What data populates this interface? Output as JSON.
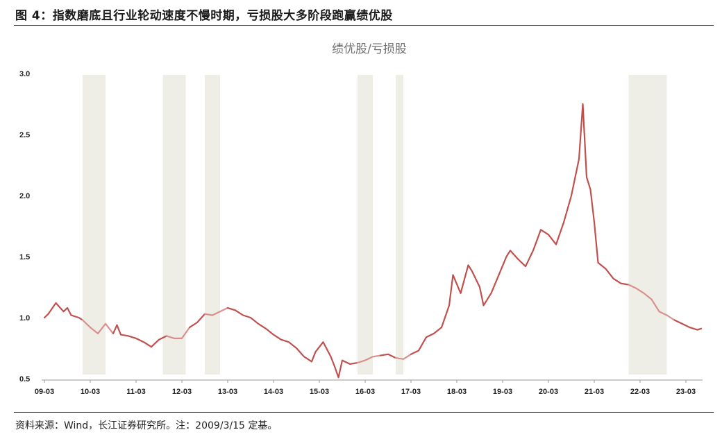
{
  "figure_title": "图 4：指数磨底且行业轮动速度不慢时期，亏损股大多阶段跑赢绩优股",
  "source_note": "资料来源：Wind，长江证券研究所。注：2009/3/15 定基。",
  "colors": {
    "line": "#c0504d",
    "line_in_band": "#d9908d",
    "band": "#eeede6",
    "axis": "#999999"
  },
  "chart_data": {
    "type": "line",
    "title": "绩优股/亏损股",
    "xlabel": "",
    "ylabel": "",
    "ylim": [
      0.5,
      3.0
    ],
    "yticks": [
      "0.5",
      "1.0",
      "1.5",
      "2.0",
      "2.5",
      "3.0"
    ],
    "x_tick_labels": [
      "09-03",
      "10-03",
      "11-03",
      "12-03",
      "13-03",
      "14-03",
      "15-03",
      "16-03",
      "17-03",
      "18-03",
      "19-03",
      "20-03",
      "21-03",
      "22-03",
      "23-03"
    ],
    "x_start": "2009-03",
    "x_end": "2023-07",
    "grid": false,
    "legend": "none",
    "shaded_periods": [
      {
        "start": "2010-01",
        "end": "2010-07"
      },
      {
        "start": "2011-10",
        "end": "2012-04"
      },
      {
        "start": "2012-09",
        "end": "2013-01"
      },
      {
        "start": "2016-01",
        "end": "2016-05"
      },
      {
        "start": "2016-11",
        "end": "2017-01"
      },
      {
        "start": "2021-12",
        "end": "2022-10"
      }
    ],
    "series": [
      {
        "name": "绩优股/亏损股",
        "x": [
          "2009-03",
          "2009-04",
          "2009-06",
          "2009-08",
          "2009-09",
          "2009-10",
          "2009-12",
          "2010-01",
          "2010-03",
          "2010-05",
          "2010-07",
          "2010-09",
          "2010-10",
          "2010-11",
          "2011-01",
          "2011-03",
          "2011-05",
          "2011-07",
          "2011-09",
          "2011-11",
          "2012-01",
          "2012-03",
          "2012-05",
          "2012-07",
          "2012-09",
          "2012-11",
          "2013-01",
          "2013-03",
          "2013-05",
          "2013-07",
          "2013-09",
          "2013-11",
          "2014-01",
          "2014-03",
          "2014-05",
          "2014-07",
          "2014-09",
          "2014-11",
          "2015-01",
          "2015-02",
          "2015-04",
          "2015-06",
          "2015-07",
          "2015-08",
          "2015-09",
          "2015-11",
          "2016-01",
          "2016-03",
          "2016-05",
          "2016-07",
          "2016-09",
          "2016-11",
          "2017-01",
          "2017-03",
          "2017-05",
          "2017-07",
          "2017-09",
          "2017-11",
          "2018-01",
          "2018-02",
          "2018-04",
          "2018-06",
          "2018-07",
          "2018-09",
          "2018-10",
          "2018-12",
          "2019-02",
          "2019-04",
          "2019-05",
          "2019-07",
          "2019-09",
          "2019-11",
          "2020-01",
          "2020-03",
          "2020-05",
          "2020-07",
          "2020-09",
          "2020-11",
          "2020-12",
          "2021-01",
          "2021-02",
          "2021-03",
          "2021-04",
          "2021-06",
          "2021-08",
          "2021-10",
          "2021-12",
          "2022-02",
          "2022-04",
          "2022-06",
          "2022-08",
          "2022-10",
          "2022-12",
          "2023-02",
          "2023-04",
          "2023-06",
          "2023-07"
        ],
        "values": [
          1.0,
          1.03,
          1.12,
          1.05,
          1.08,
          1.02,
          1.0,
          0.98,
          0.92,
          0.87,
          0.95,
          0.87,
          0.94,
          0.86,
          0.85,
          0.83,
          0.8,
          0.76,
          0.82,
          0.85,
          0.83,
          0.83,
          0.92,
          0.96,
          1.03,
          1.02,
          1.05,
          1.08,
          1.06,
          1.02,
          1.0,
          0.95,
          0.91,
          0.86,
          0.82,
          0.8,
          0.75,
          0.68,
          0.64,
          0.72,
          0.8,
          0.68,
          0.6,
          0.51,
          0.65,
          0.62,
          0.63,
          0.65,
          0.68,
          0.69,
          0.7,
          0.67,
          0.66,
          0.7,
          0.73,
          0.84,
          0.87,
          0.92,
          1.1,
          1.35,
          1.2,
          1.43,
          1.38,
          1.25,
          1.1,
          1.2,
          1.35,
          1.5,
          1.55,
          1.48,
          1.42,
          1.55,
          1.72,
          1.68,
          1.6,
          1.78,
          2.0,
          2.3,
          2.75,
          2.15,
          2.05,
          1.78,
          1.45,
          1.4,
          1.32,
          1.28,
          1.27,
          1.24,
          1.2,
          1.15,
          1.05,
          1.02,
          0.98,
          0.95,
          0.92,
          0.9,
          0.91
        ]
      }
    ]
  }
}
